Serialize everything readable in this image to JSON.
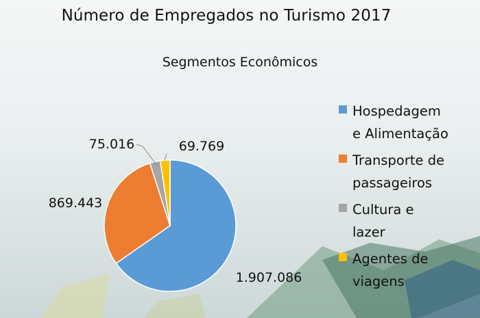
{
  "title": "Número de Empregados no Turismo 2017",
  "subtitle": "Segmentos Econômicos",
  "colors": {
    "hospedagem": "#5b9bd5",
    "transporte": "#ed7d31",
    "cultura": "#a5a5a5",
    "agentes": "#ffc000"
  },
  "chart_data": {
    "type": "pie",
    "title": "Número de Empregados no Turismo 2017",
    "subtitle": "Segmentos Econômicos",
    "legend_position": "right",
    "slices": [
      {
        "label": "Hospedagem e Alimentação",
        "value": 1907086,
        "display": "1.907.086",
        "color": "#5b9bd5"
      },
      {
        "label": "Transporte de passageiros",
        "value": 869443,
        "display": "869.443",
        "color": "#ed7d31"
      },
      {
        "label": "Cultura e lazer",
        "value": 75016,
        "display": "75.016",
        "color": "#a5a5a5"
      },
      {
        "label": "Agentes de viagens",
        "value": 69769,
        "display": "69.769",
        "color": "#ffc000"
      }
    ]
  },
  "legend": [
    {
      "line1": "Hospedagem",
      "line2": "e Alimentação"
    },
    {
      "line1": "Transporte de",
      "line2": "passageiros"
    },
    {
      "line1": "Cultura e",
      "line2": "lazer"
    },
    {
      "line1": "Agentes de",
      "line2": "viagens"
    }
  ]
}
